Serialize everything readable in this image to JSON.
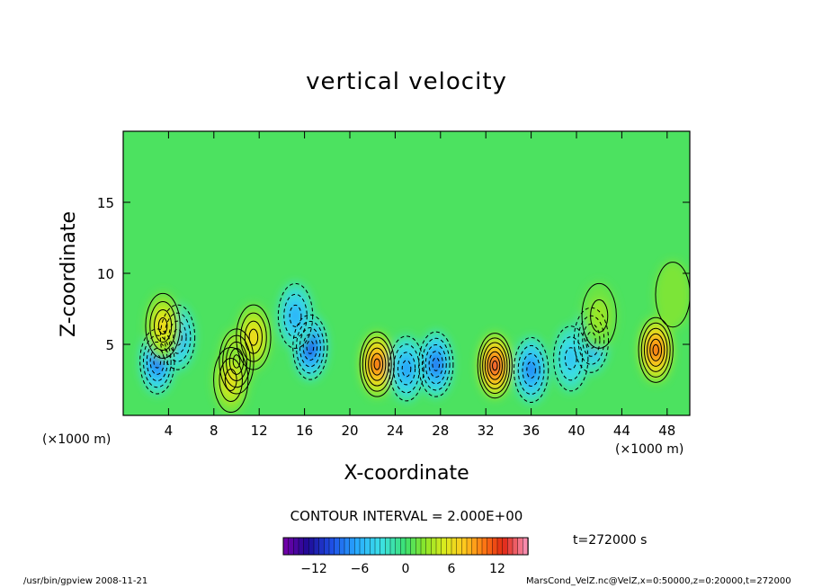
{
  "figure": {
    "left_unit_note": "(×1000 m)",
    "right_unit_note": "(×1000 m)",
    "contour_interval": "CONTOUR INTERVAL = 2.000E+00",
    "time_label": "t=272000 s",
    "program_label": "/usr/bin/gpview  2008-11-21",
    "file_label": "MarsCond_VelZ.nc@VelZ,x=0:50000,z=0:20000,t=272000"
  },
  "chart_data": {
    "type": "heatmap",
    "title": "vertical velocity",
    "xlabel": "X-coordinate",
    "ylabel": "Z-coordinate",
    "xlim": [
      0,
      50
    ],
    "ylim": [
      0,
      20
    ],
    "x_ticks": [
      4,
      8,
      12,
      16,
      20,
      24,
      28,
      32,
      36,
      40,
      44,
      48
    ],
    "y_ticks": [
      5,
      10,
      15
    ],
    "background_value": 0.5,
    "cells": [
      {
        "x": 3.0,
        "z": 3.8,
        "value": -9
      },
      {
        "x": 4.8,
        "z": 5.5,
        "value": -7
      },
      {
        "x": 3.5,
        "z": 6.3,
        "value": 7
      },
      {
        "x": 10.0,
        "z": 3.8,
        "value": 9
      },
      {
        "x": 11.5,
        "z": 5.5,
        "value": 7
      },
      {
        "x": 9.5,
        "z": 2.5,
        "value": 6
      },
      {
        "x": 16.5,
        "z": 4.8,
        "value": -10
      },
      {
        "x": 15.2,
        "z": 7.0,
        "value": -6
      },
      {
        "x": 22.4,
        "z": 3.6,
        "value": 12
      },
      {
        "x": 25.0,
        "z": 3.3,
        "value": -7
      },
      {
        "x": 27.6,
        "z": 3.6,
        "value": -9
      },
      {
        "x": 32.8,
        "z": 3.5,
        "value": 14
      },
      {
        "x": 36.0,
        "z": 3.2,
        "value": -8
      },
      {
        "x": 41.3,
        "z": 5.3,
        "value": -8
      },
      {
        "x": 39.5,
        "z": 4.0,
        "value": -5
      },
      {
        "x": 47.0,
        "z": 4.6,
        "value": 12
      },
      {
        "x": 42.0,
        "z": 7.0,
        "value": 3
      },
      {
        "x": 48.5,
        "z": 8.5,
        "value": 2
      }
    ],
    "colorbar": {
      "min": -16,
      "max": 16,
      "ticks": [
        -12,
        -6,
        0,
        6,
        12
      ]
    }
  }
}
